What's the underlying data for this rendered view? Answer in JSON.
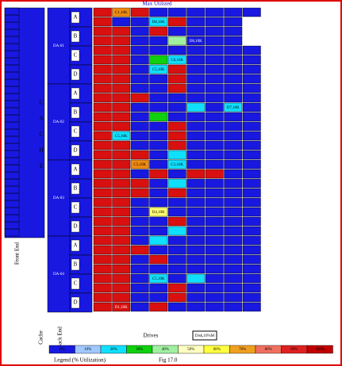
{
  "title": "Max Utilized",
  "cache_label": [
    "C",
    "A",
    "C",
    "H",
    "E"
  ],
  "front_end_label": "Front End",
  "directors": [
    "DA-01",
    "DA-02",
    "DA-03",
    "DA-04"
  ],
  "groups": [
    "A",
    "B",
    "C",
    "D"
  ],
  "colors": {
    "r": "#d81010",
    "o": "#f08a10",
    "b": "#1818e0",
    "c": "#10e0ff",
    "g": "#10d010",
    "l": "#a0f0a0",
    "y": "#ffff70",
    "s": "#f07060",
    "w": "#ffffff"
  },
  "rows": [
    "rorbbbbbb",
    "rbbcrbbbw",
    "rrbrbbbbw",
    "rrbblbbbw",
    "rrbbbbbbb",
    "rrbgcbbbb",
    "rrbcrbbbb",
    "rrbbrbbbb",
    "rrbbrbbbb",
    "rrrbbbbbb",
    "rrbbbcbcb",
    "rrbgbbbbb",
    "rrbbrbbbb",
    "rcbbrbbbb",
    "rrbbrbbbb",
    "rrrbcbbbb",
    "rrobcbbbb",
    "rrbrbrrbb",
    "rrrbcbbbb",
    "rrrbrbbbb",
    "rrbbbbbbb",
    "rrbybbbbb",
    "rrbbrbbbb",
    "rrbbcbbbb",
    "rrbcbbbbb",
    "rrrbbbbbb",
    "rrbrbbbbb",
    "rrbbbbbbb",
    "rrbcbcbbb",
    "rrbbrbbbb",
    "rrbbrbbbb",
    "rrbrbbbbb"
  ],
  "cell_labels": [
    {
      "row": 0,
      "col": 1,
      "text": "C1,10K"
    },
    {
      "row": 1,
      "col": 3,
      "text": "D8,10K"
    },
    {
      "row": 3,
      "col": 5,
      "text": "D8,10K"
    },
    {
      "row": 5,
      "col": 4,
      "text": "C6,10K"
    },
    {
      "row": 6,
      "col": 3,
      "text": "C5,10K"
    },
    {
      "row": 10,
      "col": 7,
      "text": "D7,10K"
    },
    {
      "row": 13,
      "col": 1,
      "text": "C5,10K"
    },
    {
      "row": 16,
      "col": 2,
      "text": "C5,10K"
    },
    {
      "row": 16,
      "col": 4,
      "text": "C1,10K"
    },
    {
      "row": 21,
      "col": 3,
      "text": "D4,10K"
    },
    {
      "row": 28,
      "col": 3,
      "text": "C5,10K"
    },
    {
      "row": 31,
      "col": 1,
      "text": "D1,10K"
    }
  ],
  "bottom": {
    "cache": "Cache",
    "back_end": "Back End",
    "drives": "Drives",
    "box": "Disk,10%M"
  },
  "legend": {
    "title": "Legend (% Utilization)",
    "figure": "Fig 17.0",
    "items": [
      {
        "label": "0%",
        "color": "#1818e0"
      },
      {
        "label": "10%",
        "color": "#a0c8ff"
      },
      {
        "label": "20%",
        "color": "#10e0ff"
      },
      {
        "label": "30%",
        "color": "#10d010"
      },
      {
        "label": "40%",
        "color": "#a0f0a0"
      },
      {
        "label": "50%",
        "color": "#ffffc0"
      },
      {
        "label": "60%",
        "color": "#ffff40"
      },
      {
        "label": "70%",
        "color": "#f0a020"
      },
      {
        "label": "80%",
        "color": "#f07060"
      },
      {
        "label": "90%",
        "color": "#e02020"
      },
      {
        "label": "100%",
        "color": "#c00000"
      }
    ]
  }
}
